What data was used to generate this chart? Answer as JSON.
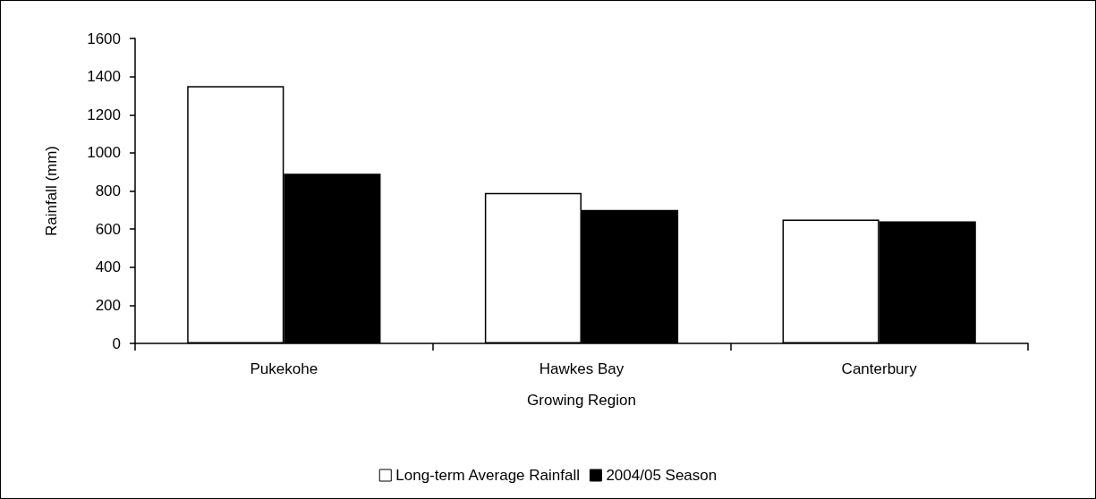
{
  "chart_data": {
    "type": "bar",
    "xlabel": "Growing Region",
    "ylabel": "Rainfall (mm)",
    "categories": [
      "Pukekohe",
      "Hawkes Bay",
      "Canterbury"
    ],
    "series": [
      {
        "name": "Long-term Average Rainfall",
        "color": "#ffffff",
        "values": [
          1350,
          790,
          650
        ]
      },
      {
        "name": "2004/05 Season",
        "color": "#000000",
        "values": [
          890,
          700,
          640
        ]
      }
    ],
    "ylim": [
      0,
      1600
    ],
    "yticks": [
      0,
      200,
      400,
      600,
      800,
      1000,
      1200,
      1400,
      1600
    ],
    "grid": false,
    "legend": "bottom"
  }
}
